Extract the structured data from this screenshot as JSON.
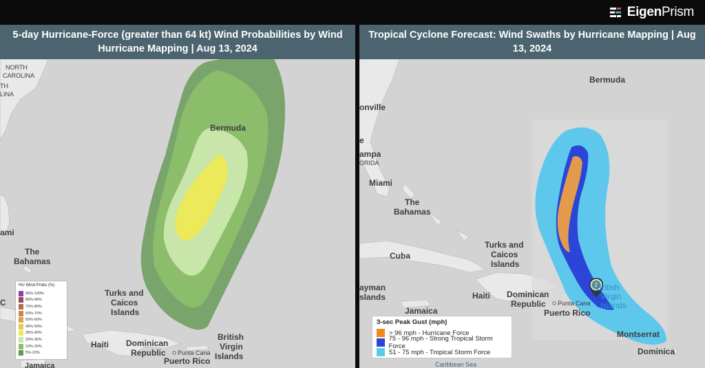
{
  "brand": {
    "name_bold": "Eigen",
    "name_light": "Prism"
  },
  "left_panel": {
    "title": "5-day Hurricane-Force (greater than 64 kt) Wind Probabilities by Wind Hurricane Mapping | Aug 13, 2024",
    "labels": {
      "north": "NORTH",
      "carolina": "CAROLINA",
      "th": "TH",
      "lina": "LINA",
      "bermuda": "Bermuda",
      "ami": "ami",
      "the": "The",
      "bahamas": "Bahamas",
      "turks_and": "Turks and",
      "caicos": "Caicos",
      "islands": "Islands",
      "haiti": "Haiti",
      "dominican": "Dominican",
      "republic": "Republic",
      "punta_cana": "Punta Cana",
      "puerto_rico": "Puerto Rico",
      "british": "British",
      "virgin": "Virgin",
      "islands2": "Islands",
      "jamaica": "Jamaica",
      "c": "C"
    },
    "legend": {
      "title": "HU Wind Probs (%)",
      "items": [
        {
          "label": "90%-100%",
          "color": "#8e3fa3"
        },
        {
          "label": "80%-90%",
          "color": "#9b4b58"
        },
        {
          "label": "70%-80%",
          "color": "#b56a49"
        },
        {
          "label": "60%-70%",
          "color": "#c9854a"
        },
        {
          "label": "50%-60%",
          "color": "#d9a349"
        },
        {
          "label": "40%-50%",
          "color": "#e8c84a"
        },
        {
          "label": "30%-40%",
          "color": "#ece95a"
        },
        {
          "label": "20%-30%",
          "color": "#c8e6a9"
        },
        {
          "label": "10%-20%",
          "color": "#8cbd6a"
        },
        {
          "label": "5%-10%",
          "color": "#5f9a4e"
        }
      ]
    }
  },
  "right_panel": {
    "title": "Tropical Cyclone Forecast: Wind Swaths by Hurricane Mapping | Aug 13, 2024",
    "labels": {
      "bermuda": "Bermuda",
      "onville": "onville",
      "e": "e",
      "ampa": "ampa",
      "orida": "ORIDA",
      "miami": "Miami",
      "the": "The",
      "bahamas": "Bahamas",
      "turks_and": "Turks and",
      "caicos": "Caicos",
      "islands": "Islands",
      "cuba": "Cuba",
      "ayman": "ayman",
      "slands": "slands",
      "haiti": "Haiti",
      "dominican": "Dominican",
      "republic": "Republic",
      "jamaica": "Jamaica",
      "punta_cana": "Punta Cana",
      "puerto_rico": "Puerto Rico",
      "british": "British",
      "virgin": "Virgin",
      "islands2": "Islands",
      "montserrat": "Montserrat",
      "dominica": "Dominica",
      "caribbean_sea": "Caribbean Sea"
    },
    "marker_label": "1",
    "legend": {
      "title": "3-sec Peak Gust (mph)",
      "items": [
        {
          "label": "> 96 mph - Hurricane Force",
          "color": "#f08a1c"
        },
        {
          "label": "75 - 96 mph - Strong Tropical Storm Force",
          "color": "#2b45d9"
        },
        {
          "label": "51 - 75 mph - Tropical Storm Force",
          "color": "#5ec8ec"
        }
      ]
    }
  }
}
